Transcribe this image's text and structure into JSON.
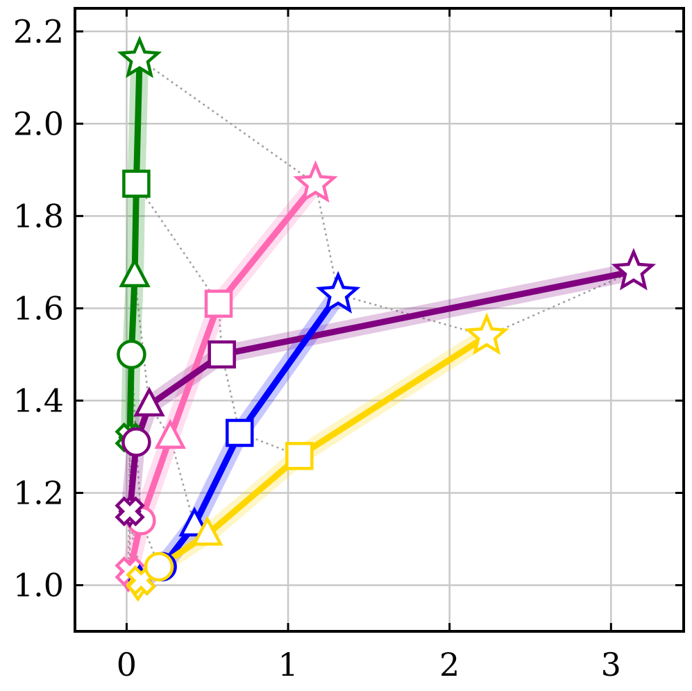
{
  "chart_data": {
    "type": "line",
    "title": "",
    "xlabel": "",
    "ylabel": "",
    "xlim": [
      -0.32,
      3.45
    ],
    "ylim": [
      0.9,
      2.25
    ],
    "x_ticks": [
      0,
      1,
      2,
      3
    ],
    "x_tick_labels": [
      "0",
      "1",
      "2",
      "3"
    ],
    "y_ticks": [
      1.0,
      1.2,
      1.4,
      1.6,
      1.8,
      2.0,
      2.2
    ],
    "y_tick_labels": [
      "1.0",
      "1.2",
      "1.4",
      "1.6",
      "1.8",
      "2.0",
      "2.2"
    ],
    "grid": true,
    "marker_order": [
      "diamond",
      "x",
      "circle",
      "triangle",
      "square",
      "star"
    ],
    "series": [
      {
        "color": "#008000",
        "points": [
          {
            "x": 0.02,
            "y": 1.32,
            "marker": "diamond"
          },
          {
            "x": 0.02,
            "y": 1.32,
            "marker": "x"
          },
          {
            "x": 0.03,
            "y": 1.5,
            "marker": "circle"
          },
          {
            "x": 0.05,
            "y": 1.67,
            "marker": "triangle"
          },
          {
            "x": 0.06,
            "y": 1.87,
            "marker": "square"
          },
          {
            "x": 0.08,
            "y": 2.14,
            "marker": "star"
          }
        ]
      },
      {
        "color": "#ff69b4",
        "points": [
          {
            "x": 0.01,
            "y": 1.02,
            "marker": "diamond"
          },
          {
            "x": 0.02,
            "y": 1.03,
            "marker": "x"
          },
          {
            "x": 0.09,
            "y": 1.14,
            "marker": "circle"
          },
          {
            "x": 0.27,
            "y": 1.32,
            "marker": "triangle"
          },
          {
            "x": 0.57,
            "y": 1.61,
            "marker": "square"
          },
          {
            "x": 1.17,
            "y": 1.87,
            "marker": "star"
          }
        ]
      },
      {
        "color": "#800080",
        "points": [
          {
            "x": 0.02,
            "y": 1.16,
            "marker": "diamond"
          },
          {
            "x": 0.02,
            "y": 1.16,
            "marker": "x"
          },
          {
            "x": 0.06,
            "y": 1.31,
            "marker": "circle"
          },
          {
            "x": 0.14,
            "y": 1.39,
            "marker": "triangle"
          },
          {
            "x": 0.59,
            "y": 1.5,
            "marker": "square"
          },
          {
            "x": 3.14,
            "y": 1.68,
            "marker": "star"
          }
        ]
      },
      {
        "color": "#0000ff",
        "points": [
          {
            "x": 0.08,
            "y": 1.01,
            "marker": "diamond"
          },
          {
            "x": 0.09,
            "y": 1.01,
            "marker": "x"
          },
          {
            "x": 0.22,
            "y": 1.04,
            "marker": "circle"
          },
          {
            "x": 0.42,
            "y": 1.13,
            "marker": "triangle"
          },
          {
            "x": 0.7,
            "y": 1.33,
            "marker": "square"
          },
          {
            "x": 1.31,
            "y": 1.63,
            "marker": "star"
          }
        ]
      },
      {
        "color": "#ffd700",
        "points": [
          {
            "x": 0.07,
            "y": 1.0,
            "marker": "diamond"
          },
          {
            "x": 0.09,
            "y": 1.01,
            "marker": "x"
          },
          {
            "x": 0.2,
            "y": 1.04,
            "marker": "circle"
          },
          {
            "x": 0.5,
            "y": 1.11,
            "marker": "triangle"
          },
          {
            "x": 1.07,
            "y": 1.28,
            "marker": "square"
          },
          {
            "x": 2.23,
            "y": 1.54,
            "marker": "star"
          }
        ]
      }
    ]
  }
}
